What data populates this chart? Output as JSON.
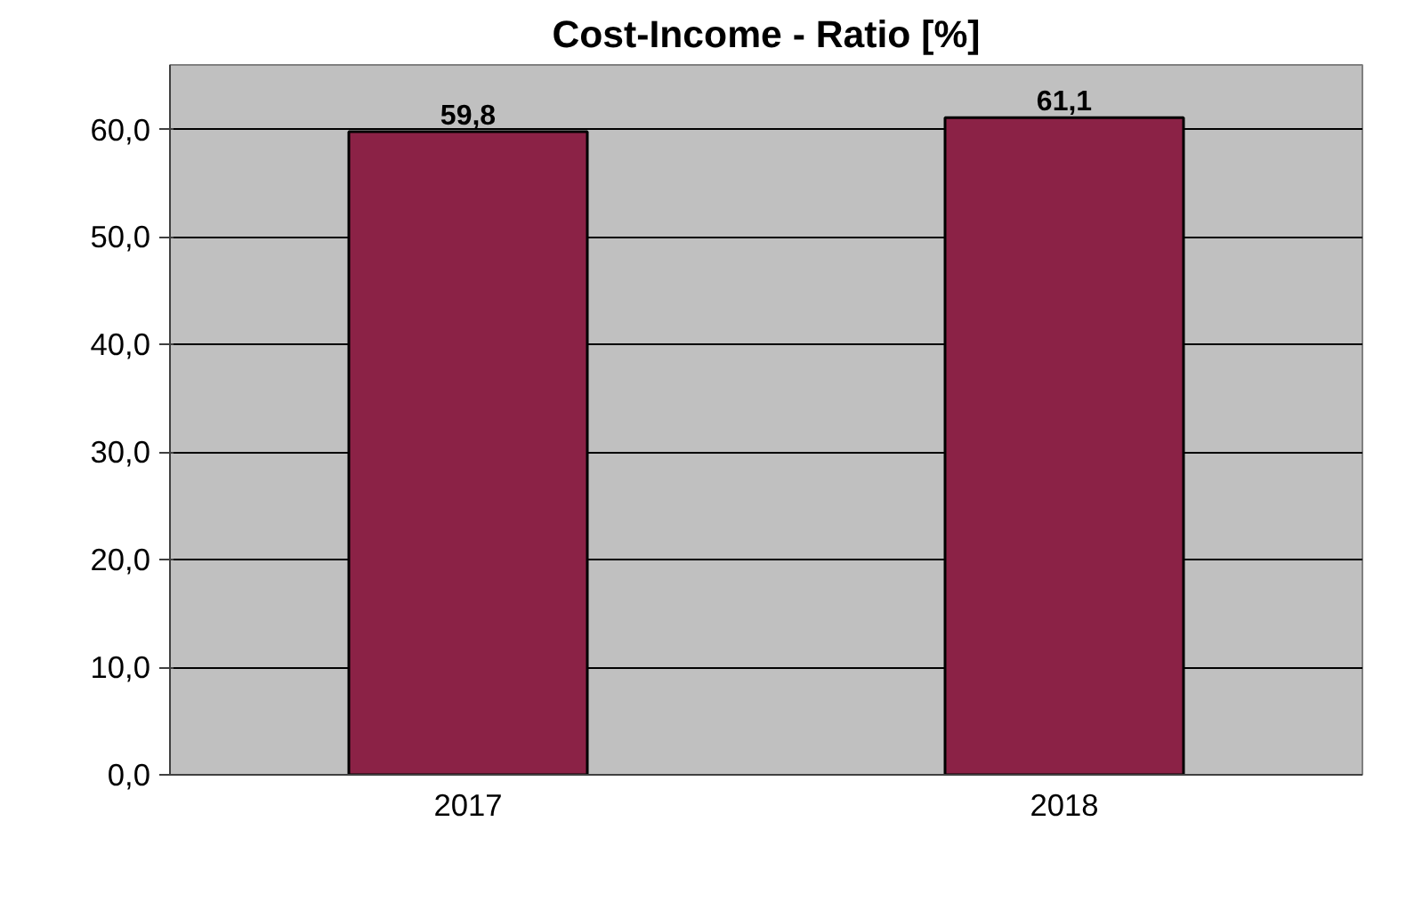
{
  "chart_data": {
    "type": "bar",
    "title": "Cost-Income - Ratio [%]",
    "categories": [
      "2017",
      "2018"
    ],
    "values": [
      59.8,
      61.1
    ],
    "value_labels": [
      "59,8",
      "61,1"
    ],
    "color": "#8b2246",
    "ylim": [
      0,
      66
    ],
    "yticks": [
      {
        "value": 0,
        "label": "0,0"
      },
      {
        "value": 10,
        "label": "10,0"
      },
      {
        "value": 20,
        "label": "20,0"
      },
      {
        "value": 30,
        "label": "30,0"
      },
      {
        "value": 40,
        "label": "40,0"
      },
      {
        "value": 50,
        "label": "50,0"
      },
      {
        "value": 60,
        "label": "60,0"
      }
    ],
    "grid": "y"
  }
}
